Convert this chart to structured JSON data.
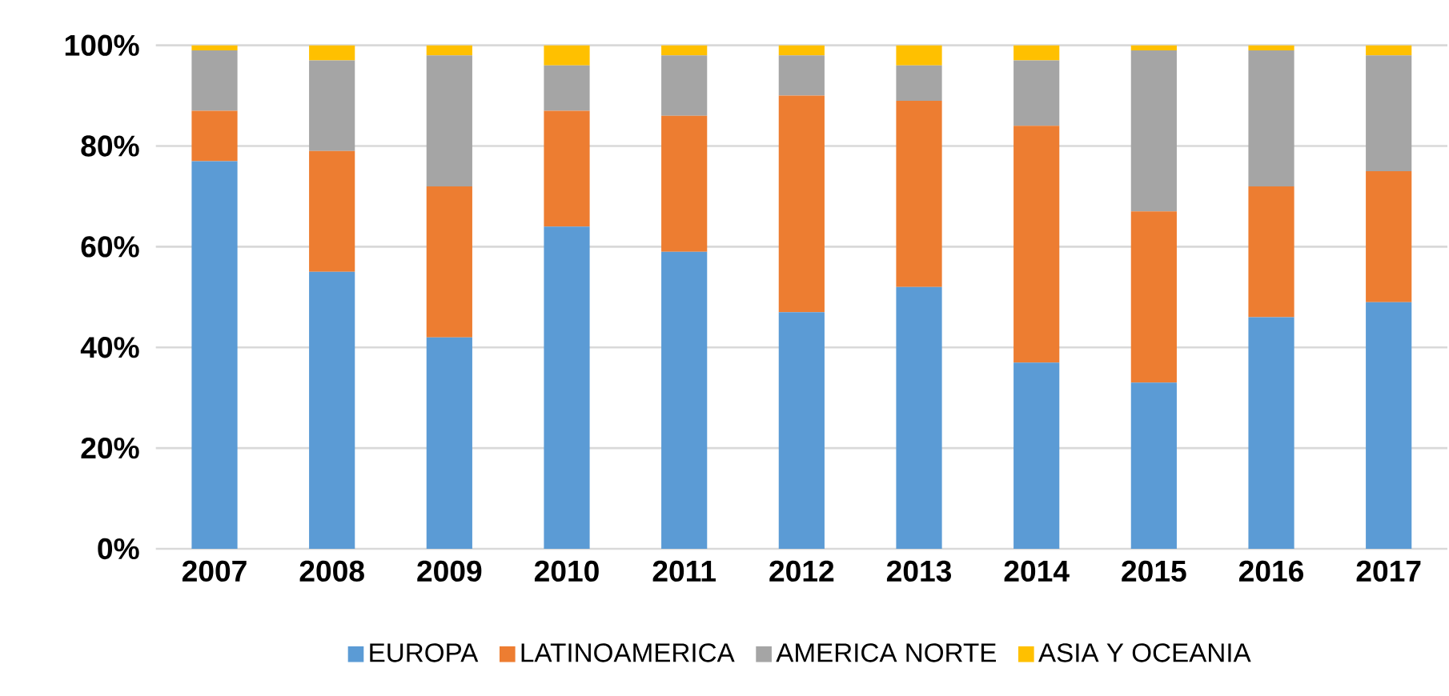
{
  "chart_data": {
    "type": "bar",
    "stacked": true,
    "categories": [
      "2007",
      "2008",
      "2009",
      "2010",
      "2011",
      "2012",
      "2013",
      "2014",
      "2015",
      "2016",
      "2017"
    ],
    "series": [
      {
        "name": "EUROPA",
        "color": "#5b9bd5",
        "values": [
          77,
          55,
          42,
          64,
          59,
          47,
          52,
          37,
          33,
          46,
          49
        ]
      },
      {
        "name": "LATINOAMERICA",
        "color": "#ed7d31",
        "values": [
          10,
          24,
          30,
          23,
          27,
          43,
          37,
          47,
          34,
          26,
          26
        ]
      },
      {
        "name": "AMERICA NORTE",
        "color": "#a5a5a5",
        "values": [
          12,
          18,
          26,
          9,
          12,
          8,
          7,
          13,
          32,
          27,
          23
        ]
      },
      {
        "name": "ASIA Y OCEANIA",
        "color": "#ffc000",
        "values": [
          1,
          3,
          2,
          4,
          2,
          2,
          4,
          3,
          1,
          1,
          2
        ]
      }
    ],
    "ylim": [
      0,
      100
    ],
    "yticks": [
      {
        "value": 0,
        "label": "0%"
      },
      {
        "value": 20,
        "label": "20%"
      },
      {
        "value": 40,
        "label": "40%"
      },
      {
        "value": 60,
        "label": "60%"
      },
      {
        "value": 80,
        "label": "80%"
      },
      {
        "value": 100,
        "label": "100%"
      }
    ],
    "grid": "y",
    "legend": "bottom"
  }
}
